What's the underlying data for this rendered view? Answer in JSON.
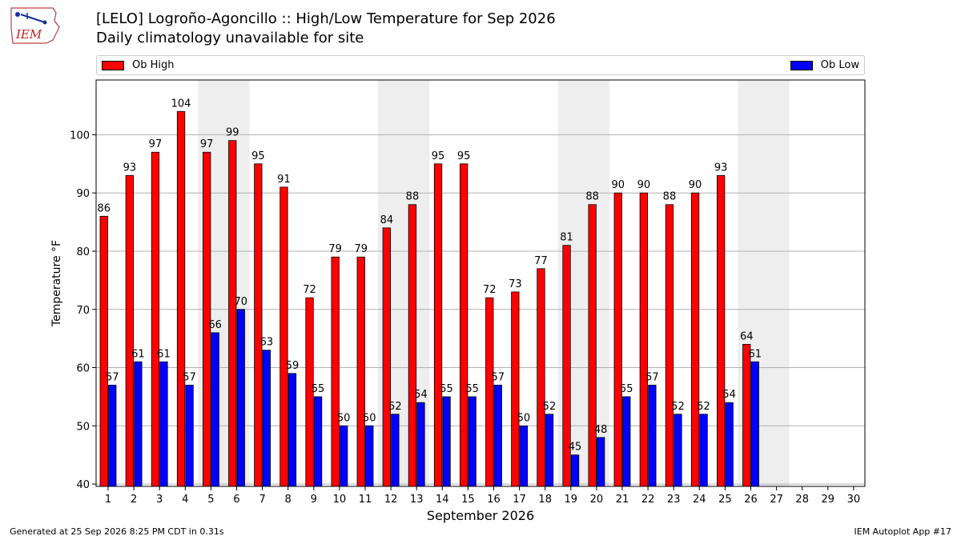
{
  "header": {
    "logo_text": "IEM",
    "title_line1": "[LELO] Logroño-Agoncillo :: High/Low Temperature for Sep 2026",
    "title_line2": "Daily climatology unavailable for site"
  },
  "legend": {
    "high_label": "Ob High",
    "low_label": "Ob Low",
    "high_color": "#ff0000",
    "low_color": "#0000ff"
  },
  "footer": {
    "left": "Generated at 25 Sep 2026 8:25 PM CDT in 0.31s",
    "right": "IEM Autoplot App #17"
  },
  "chart_data": {
    "type": "bar",
    "xlabel": "September 2026",
    "ylabel": "Temperature °F",
    "ylim": [
      39.6,
      109.4
    ],
    "yticks": [
      40,
      50,
      60,
      70,
      80,
      90,
      100
    ],
    "grid": true,
    "legend_position": "top",
    "categories": [
      "1",
      "2",
      "3",
      "4",
      "5",
      "6",
      "7",
      "8",
      "9",
      "10",
      "11",
      "12",
      "13",
      "14",
      "15",
      "16",
      "17",
      "18",
      "19",
      "20",
      "21",
      "22",
      "23",
      "24",
      "25",
      "26",
      "27",
      "28",
      "29",
      "30"
    ],
    "weekend_shading_days": [
      [
        5,
        6
      ],
      [
        12,
        13
      ],
      [
        19,
        20
      ],
      [
        26,
        27
      ]
    ],
    "series": [
      {
        "name": "Ob High",
        "color": "#ff0000",
        "values": [
          86,
          93,
          97,
          104,
          97,
          99,
          95,
          91,
          72,
          79,
          79,
          84,
          88,
          95,
          95,
          72,
          73,
          77,
          81,
          88,
          90,
          90,
          88,
          90,
          93,
          64,
          null,
          null,
          null,
          null
        ]
      },
      {
        "name": "Ob Low",
        "color": "#0000ff",
        "values": [
          57,
          61,
          61,
          57,
          66,
          70,
          63,
          59,
          55,
          50,
          50,
          52,
          54,
          55,
          55,
          57,
          50,
          52,
          45,
          48,
          55,
          57,
          52,
          52,
          54,
          61,
          null,
          null,
          null,
          null
        ]
      }
    ]
  }
}
